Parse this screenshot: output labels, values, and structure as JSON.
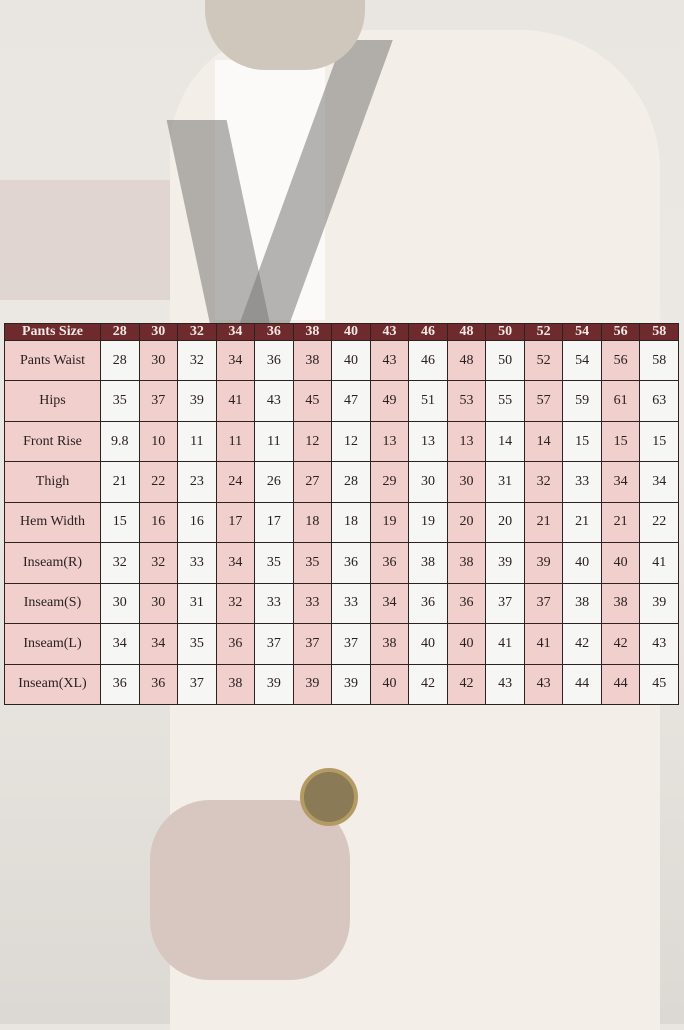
{
  "chart_data": {
    "type": "table",
    "header_label": "Pants Size",
    "sizes": [
      "28",
      "30",
      "32",
      "34",
      "36",
      "38",
      "40",
      "43",
      "46",
      "48",
      "50",
      "52",
      "54",
      "56",
      "58"
    ],
    "rows": [
      {
        "label": "Pants Waist",
        "values": [
          "28",
          "30",
          "32",
          "34",
          "36",
          "38",
          "40",
          "43",
          "46",
          "48",
          "50",
          "52",
          "54",
          "56",
          "58"
        ]
      },
      {
        "label": "Hips",
        "values": [
          "35",
          "37",
          "39",
          "41",
          "43",
          "45",
          "47",
          "49",
          "51",
          "53",
          "55",
          "57",
          "59",
          "61",
          "63"
        ]
      },
      {
        "label": "Front Rise",
        "values": [
          "9.8",
          "10",
          "11",
          "11",
          "11",
          "12",
          "12",
          "13",
          "13",
          "13",
          "14",
          "14",
          "15",
          "15",
          "15"
        ]
      },
      {
        "label": "Thigh",
        "values": [
          "21",
          "22",
          "23",
          "24",
          "26",
          "27",
          "28",
          "29",
          "30",
          "30",
          "31",
          "32",
          "33",
          "34",
          "34"
        ]
      },
      {
        "label": "Hem Width",
        "values": [
          "15",
          "16",
          "16",
          "17",
          "17",
          "18",
          "18",
          "19",
          "19",
          "20",
          "20",
          "21",
          "21",
          "21",
          "22"
        ]
      },
      {
        "label": "Inseam(R)",
        "values": [
          "32",
          "32",
          "33",
          "34",
          "35",
          "35",
          "36",
          "36",
          "38",
          "38",
          "39",
          "39",
          "40",
          "40",
          "41"
        ]
      },
      {
        "label": "Inseam(S)",
        "values": [
          "30",
          "30",
          "31",
          "32",
          "33",
          "33",
          "33",
          "34",
          "36",
          "36",
          "37",
          "37",
          "38",
          "38",
          "39"
        ]
      },
      {
        "label": "Inseam(L)",
        "values": [
          "34",
          "34",
          "35",
          "36",
          "37",
          "37",
          "37",
          "38",
          "40",
          "40",
          "41",
          "41",
          "42",
          "42",
          "43"
        ]
      },
      {
        "label": "Inseam(XL)",
        "values": [
          "36",
          "36",
          "37",
          "38",
          "39",
          "39",
          "39",
          "40",
          "42",
          "42",
          "43",
          "43",
          "44",
          "44",
          "45"
        ]
      }
    ]
  },
  "colors": {
    "header": "#6e2a2c",
    "pink": "#f0cfcd",
    "white": "#f6f6f4"
  }
}
